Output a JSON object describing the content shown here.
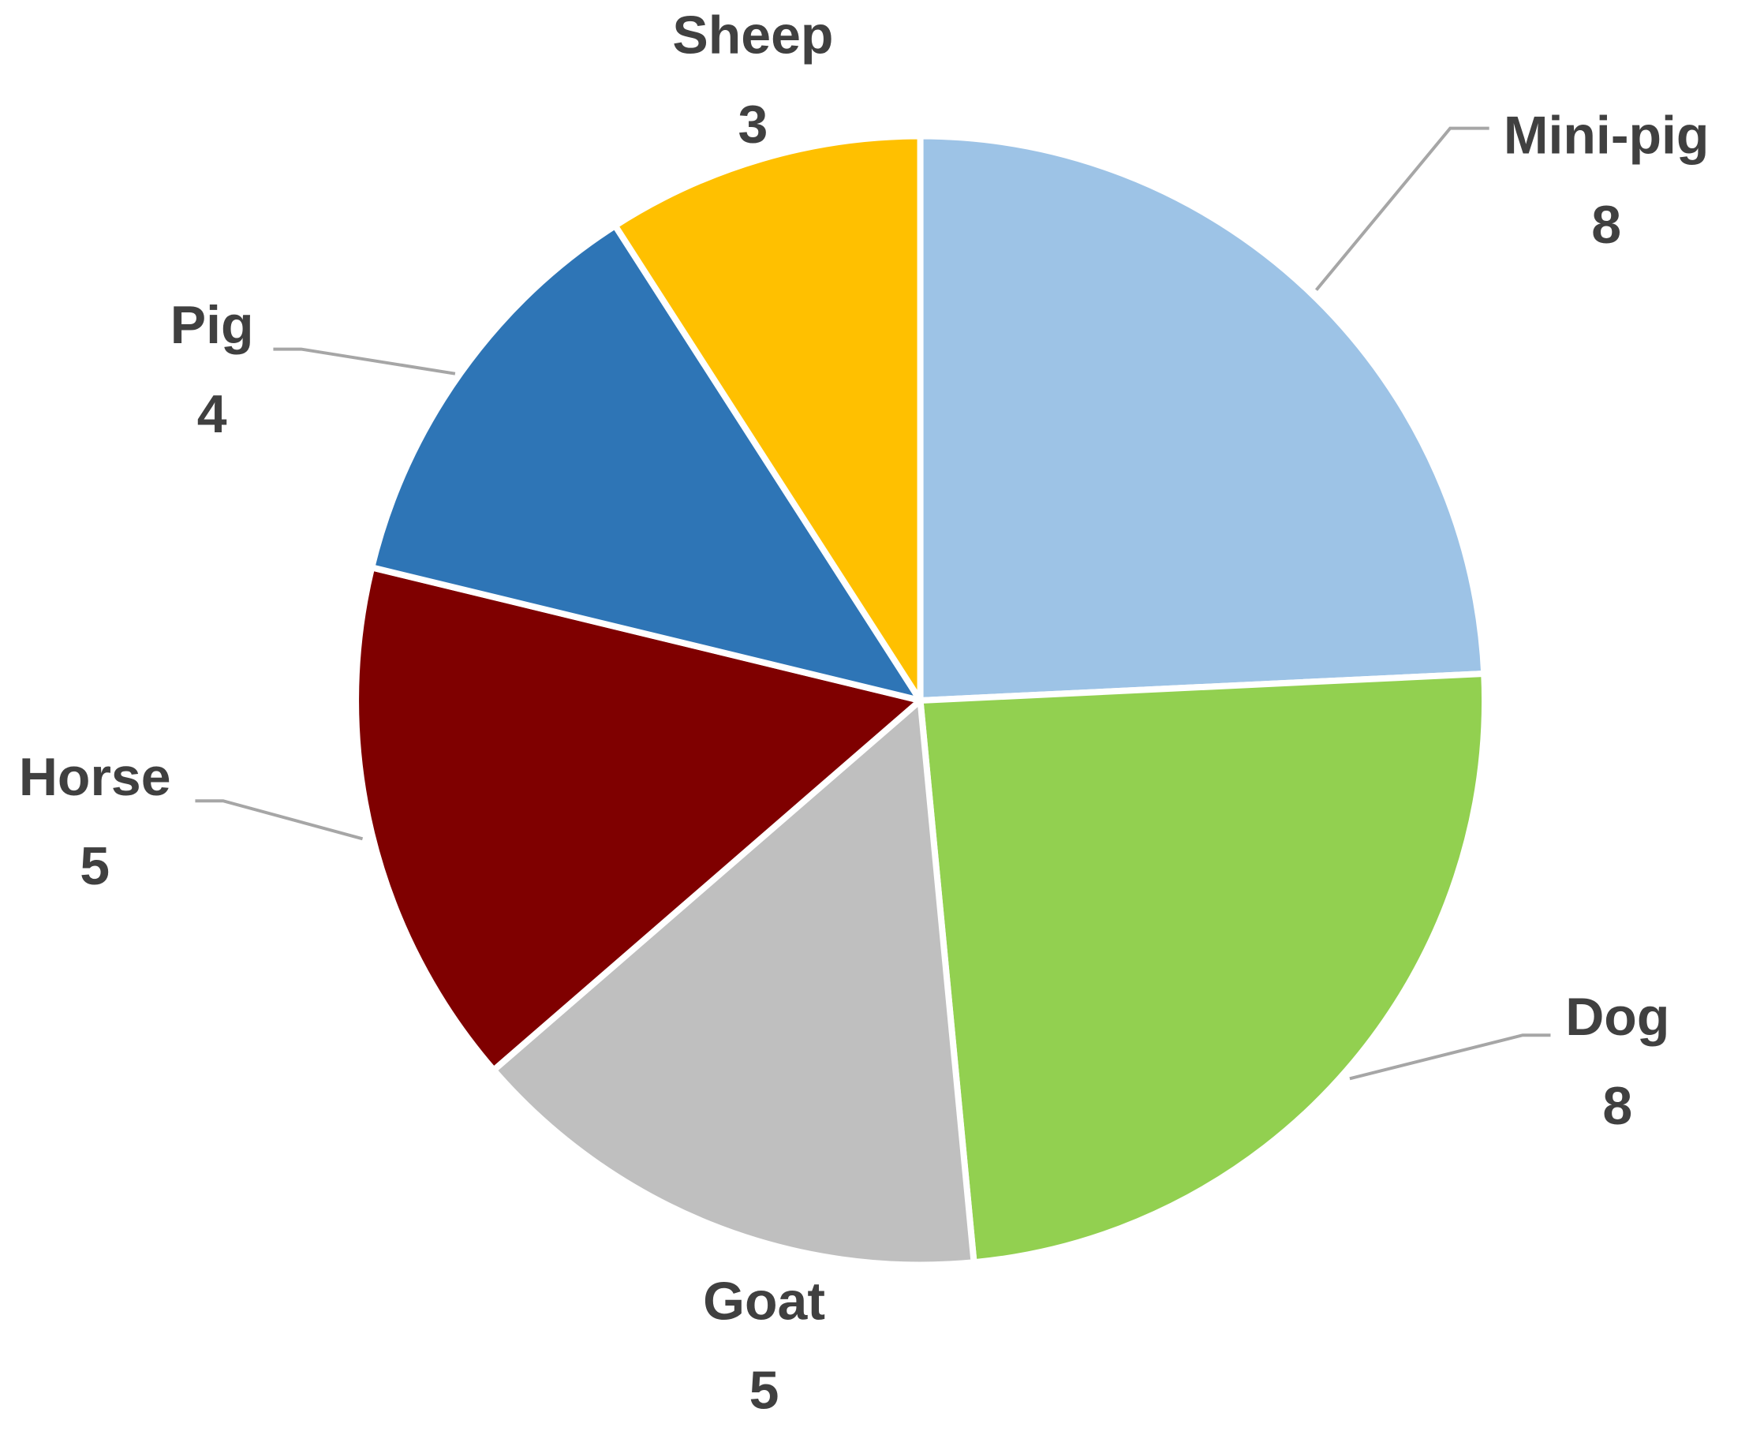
{
  "chart_data": {
    "type": "pie",
    "categories": [
      "Mini-pig",
      "Dog",
      "Goat",
      "Horse",
      "Pig",
      "Sheep"
    ],
    "values": [
      8,
      8,
      5,
      5,
      4,
      3
    ],
    "colors": [
      "#9dc3e6",
      "#92d050",
      "#bfbfbf",
      "#7f0000",
      "#2e75b6",
      "#ffc000"
    ]
  }
}
